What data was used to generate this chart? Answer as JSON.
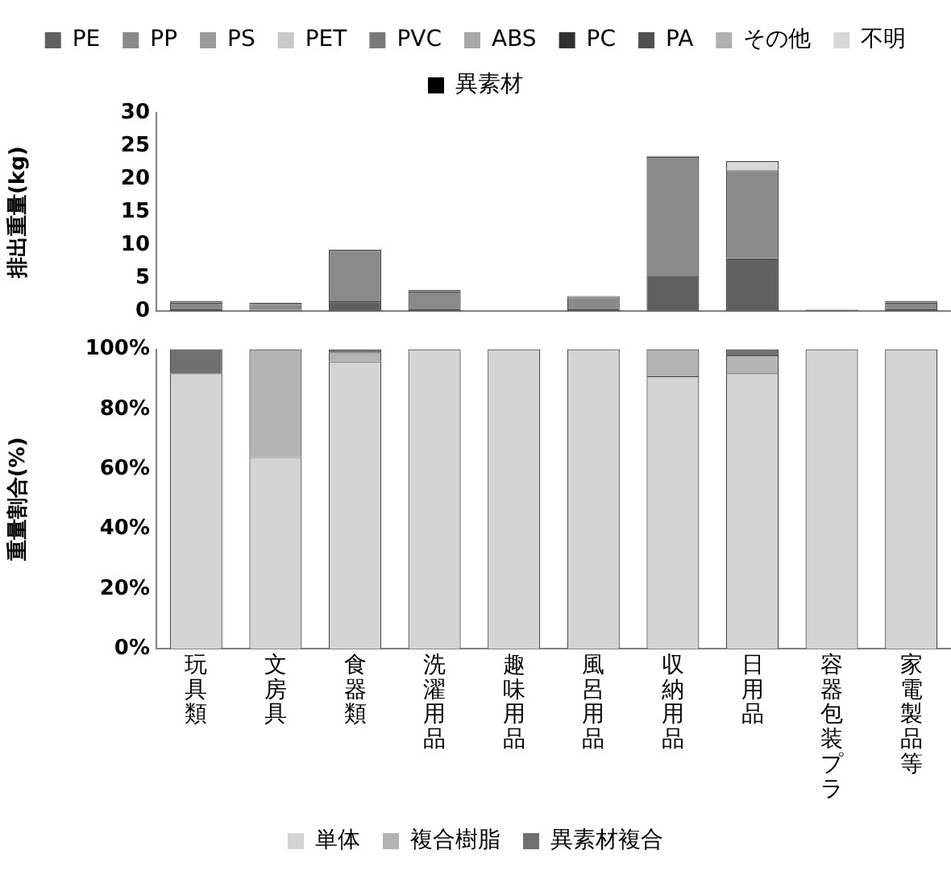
{
  "chart_data": [
    {
      "type": "bar",
      "stacked": true,
      "ylabel": "排出重量(kg)",
      "legend": "top",
      "tick_labels": "y",
      "ylim": [
        0,
        30
      ],
      "yticks": [
        0,
        5,
        10,
        15,
        20,
        25,
        30
      ],
      "categories": [
        "玩具類",
        "文房具",
        "食器類",
        "洗濯用品",
        "趣味用品",
        "風呂用品",
        "収納用品",
        "日用品",
        "容器包装プラ",
        "家電製品等"
      ],
      "series": [
        {
          "name": "PE",
          "color": "#606060",
          "values": [
            0.3,
            0.2,
            1.5,
            0.3,
            0,
            0.3,
            5.5,
            8,
            0.1,
            0.3
          ]
        },
        {
          "name": "PP",
          "color": "#8a8a8a",
          "values": [
            1,
            0.8,
            7.8,
            2.7,
            0,
            1.8,
            17.8,
            13.2,
            0.1,
            1
          ]
        },
        {
          "name": "PS",
          "color": "#9a9a9a",
          "values": [
            0.2,
            0.3,
            0,
            0.2,
            0,
            0.2,
            0.2,
            0.2,
            0.1,
            0.2
          ]
        },
        {
          "name": "PET",
          "color": "#c8c8c8",
          "values": [
            0,
            0,
            0,
            0,
            0,
            0,
            0,
            0,
            0,
            0
          ]
        },
        {
          "name": "PVC",
          "color": "#7a7a7a",
          "values": [
            0,
            0,
            0,
            0,
            0,
            0,
            0,
            0,
            0,
            0
          ]
        },
        {
          "name": "ABS",
          "color": "#a8a8a8",
          "values": [
            0,
            0,
            0,
            0,
            0,
            0,
            0,
            0,
            0,
            0
          ]
        },
        {
          "name": "PC",
          "color": "#303030",
          "values": [
            0,
            0,
            0,
            0,
            0,
            0,
            0,
            0,
            0,
            0
          ]
        },
        {
          "name": "PA",
          "color": "#505050",
          "values": [
            0,
            0,
            0,
            0,
            0,
            0,
            0,
            0,
            0,
            0
          ]
        },
        {
          "name": "その他",
          "color": "#b0b0b0",
          "values": [
            0,
            0,
            0,
            0,
            0,
            0,
            0,
            0,
            0,
            0
          ]
        },
        {
          "name": "不明",
          "color": "#d8d8d8",
          "values": [
            0,
            0,
            0,
            0,
            0,
            0,
            0,
            1.3,
            0,
            0
          ]
        },
        {
          "name": "異素材",
          "color": "#000000",
          "values": [
            0,
            0,
            0,
            0,
            0,
            0,
            0,
            0,
            0,
            0
          ]
        }
      ]
    },
    {
      "type": "bar",
      "stacked": true,
      "ylabel": "重量割合(%)",
      "legend": "bottom",
      "ylim": [
        0,
        100
      ],
      "yticks": [
        {
          "value": 0,
          "label": "0%"
        },
        {
          "value": 20,
          "label": "20%"
        },
        {
          "value": 40,
          "label": "40%"
        },
        {
          "value": 60,
          "label": "60%"
        },
        {
          "value": 80,
          "label": "80%"
        },
        {
          "value": 100,
          "label": "100%"
        }
      ],
      "categories": [
        "玩具類",
        "文房具",
        "食器類",
        "洗濯用品",
        "趣味用品",
        "風呂用品",
        "収納用品",
        "日用品",
        "容器包装プラ",
        "家電製品等"
      ],
      "series": [
        {
          "name": "単体",
          "color": "#d4d4d4",
          "values": [
            92,
            64,
            96,
            100,
            100,
            100,
            91,
            92,
            100,
            100
          ]
        },
        {
          "name": "複合樹脂",
          "color": "#b4b4b4",
          "values": [
            0,
            36,
            3,
            0,
            0,
            0,
            9,
            6,
            0,
            0
          ]
        },
        {
          "name": "異素材複合",
          "color": "#707070",
          "values": [
            8,
            0,
            1,
            0,
            0,
            0,
            0,
            2,
            0,
            0
          ]
        }
      ]
    }
  ]
}
